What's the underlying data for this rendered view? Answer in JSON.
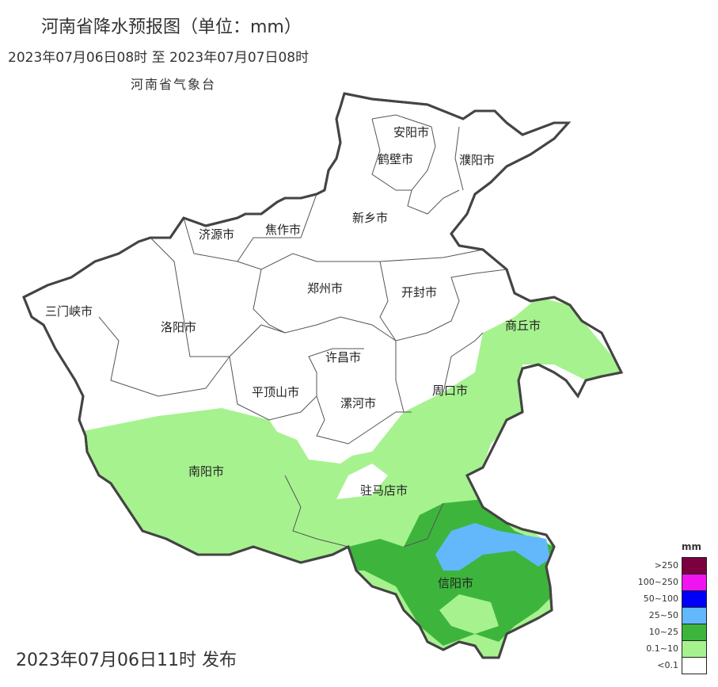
{
  "header": {
    "title": "河南省降水预报图（单位：mm）",
    "period": "2023年07月06日08时  至  2023年07月07日08时",
    "agency": "河南省气象台"
  },
  "footer": {
    "issued": "2023年07月06日11时 发布"
  },
  "map": {
    "cities": [
      "安阳市",
      "鹤壁市",
      "濮阳市",
      "新乡市",
      "焦作市",
      "济源市",
      "郑州市",
      "开封市",
      "三门峡市",
      "洛阳市",
      "商丘市",
      "许昌市",
      "平顶山市",
      "周口市",
      "漯河市",
      "南阳市",
      "驻马店市",
      "信阳市"
    ]
  },
  "legend": {
    "unit": "mm",
    "items": [
      {
        "label": ">250",
        "color": "#7a0040"
      },
      {
        "label": "100~250",
        "color": "#f014f0"
      },
      {
        "label": "50~100",
        "color": "#0000fa"
      },
      {
        "label": "25~50",
        "color": "#62b8fb"
      },
      {
        "label": "10~25",
        "color": "#3db53d"
      },
      {
        "label": "0.1~10",
        "color": "#a6f28f"
      },
      {
        "label": "<0.1",
        "color": "#ffffff"
      }
    ]
  }
}
